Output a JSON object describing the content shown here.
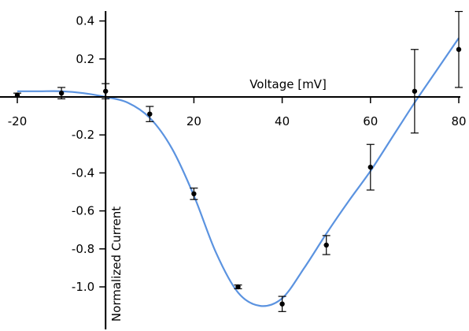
{
  "chart_data": {
    "type": "scatter",
    "xlabel": "Voltage [mV]",
    "ylabel": "Normalized Current",
    "xlim": [
      -20,
      80
    ],
    "ylim": [
      -1.2,
      0.45
    ],
    "x_ticks": [
      -20,
      20,
      40,
      60,
      80
    ],
    "x_tick_labels": [
      "-20",
      "20",
      "40",
      "60",
      "80"
    ],
    "y_ticks": [
      0.4,
      0.2,
      -0.2,
      -0.4,
      -0.6,
      -0.8,
      -1.0
    ],
    "y_tick_labels": [
      "0.4",
      "0.2",
      "-0.2",
      "-0.4",
      "-0.6",
      "-0.8",
      "-1.0"
    ],
    "grid": false,
    "series": [
      {
        "type": "scatter",
        "color": "#000000",
        "x": [
          -20,
          -10,
          0,
          10,
          20,
          30,
          40,
          50,
          60,
          70,
          80
        ],
        "y": [
          0.01,
          0.02,
          0.03,
          -0.09,
          -0.51,
          -1.0,
          -1.09,
          -0.78,
          -0.37,
          0.03,
          0.25
        ],
        "error": [
          0.01,
          0.03,
          0.04,
          0.04,
          0.03,
          0.01,
          0.04,
          0.05,
          0.12,
          0.22,
          0.2
        ]
      },
      {
        "type": "line",
        "color": "#5b93e0",
        "x": [
          -20,
          -15,
          -10,
          -5,
          0,
          5,
          10,
          15,
          20,
          25,
          30,
          35,
          40,
          45,
          50,
          55,
          60,
          65,
          70,
          75,
          80
        ],
        "y": [
          0.03,
          0.03,
          0.03,
          0.02,
          0.0,
          -0.03,
          -0.11,
          -0.27,
          -0.52,
          -0.82,
          -1.03,
          -1.1,
          -1.06,
          -0.9,
          -0.72,
          -0.55,
          -0.39,
          -0.21,
          -0.03,
          0.14,
          0.31
        ]
      }
    ]
  }
}
